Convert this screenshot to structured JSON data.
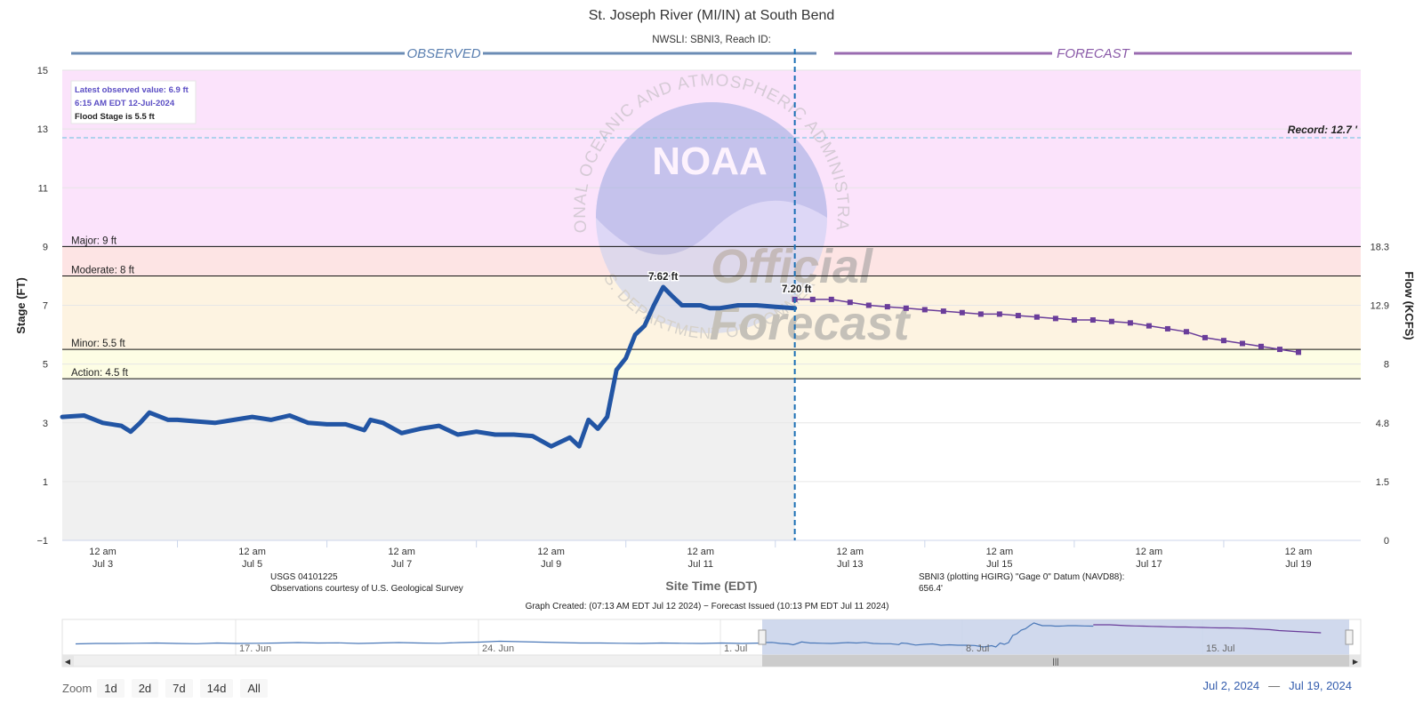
{
  "chart_data": {
    "type": "line",
    "title": "St. Joseph River (MI/IN) at South Bend",
    "subtitle": "NWSLI: SBNI3, Reach ID:",
    "xlabel": "Site Time (EDT)",
    "ylabel": "Stage (FT)",
    "y2label": "Flow (KCFS)",
    "ylim": [
      -1,
      15
    ],
    "yticks": [
      "15",
      "13",
      "11",
      "9",
      "7",
      "5",
      "3",
      "1",
      "−1"
    ],
    "y2ticks": [
      {
        "stage": 9,
        "label": "18.3"
      },
      {
        "stage": 7,
        "label": "12.9"
      },
      {
        "stage": 5,
        "label": "8"
      },
      {
        "stage": 3,
        "label": "4.8"
      },
      {
        "stage": 1,
        "label": "1.5"
      },
      {
        "stage": -1,
        "label": "0"
      }
    ],
    "xlim": [
      "2024-07-02T11:00",
      "2024-07-19T20:00"
    ],
    "xticks": [
      {
        "t": "2024-07-03T00:00",
        "l1": "12 am",
        "l2": "Jul 3"
      },
      {
        "t": "2024-07-05T00:00",
        "l1": "12 am",
        "l2": "Jul 5"
      },
      {
        "t": "2024-07-07T00:00",
        "l1": "12 am",
        "l2": "Jul 7"
      },
      {
        "t": "2024-07-09T00:00",
        "l1": "12 am",
        "l2": "Jul 9"
      },
      {
        "t": "2024-07-11T00:00",
        "l1": "12 am",
        "l2": "Jul 11"
      },
      {
        "t": "2024-07-13T00:00",
        "l1": "12 am",
        "l2": "Jul 13"
      },
      {
        "t": "2024-07-15T00:00",
        "l1": "12 am",
        "l2": "Jul 15"
      },
      {
        "t": "2024-07-17T00:00",
        "l1": "12 am",
        "l2": "Jul 17"
      },
      {
        "t": "2024-07-19T00:00",
        "l1": "12 am",
        "l2": "Jul 19"
      }
    ],
    "grid": true,
    "series": [
      {
        "name": "OBSERVED",
        "color": "#2255a4",
        "x": [
          "2024-07-02T11:00",
          "2024-07-02T18:00",
          "2024-07-03T00:00",
          "2024-07-03T06:00",
          "2024-07-03T09:00",
          "2024-07-03T12:00",
          "2024-07-03T15:00",
          "2024-07-03T21:00",
          "2024-07-04T00:00",
          "2024-07-04T06:00",
          "2024-07-04T12:00",
          "2024-07-05T00:00",
          "2024-07-05T06:00",
          "2024-07-05T12:00",
          "2024-07-05T18:00",
          "2024-07-06T00:00",
          "2024-07-06T06:00",
          "2024-07-06T12:00",
          "2024-07-06T14:00",
          "2024-07-06T18:00",
          "2024-07-07T00:00",
          "2024-07-07T06:00",
          "2024-07-07T12:00",
          "2024-07-07T18:00",
          "2024-07-08T00:00",
          "2024-07-08T06:00",
          "2024-07-08T12:00",
          "2024-07-08T18:00",
          "2024-07-09T00:00",
          "2024-07-09T06:00",
          "2024-07-09T09:00",
          "2024-07-09T12:00",
          "2024-07-09T15:00",
          "2024-07-09T18:00",
          "2024-07-09T21:00",
          "2024-07-10T00:00",
          "2024-07-10T03:00",
          "2024-07-10T06:00",
          "2024-07-10T09:00",
          "2024-07-10T12:00",
          "2024-07-10T15:00",
          "2024-07-10T18:00",
          "2024-07-10T21:00",
          "2024-07-11T00:00",
          "2024-07-11T03:00",
          "2024-07-11T06:00",
          "2024-07-11T09:00",
          "2024-07-11T12:00",
          "2024-07-11T18:00",
          "2024-07-12T00:00",
          "2024-07-12T06:15"
        ],
        "y": [
          3.2,
          3.25,
          3.0,
          2.9,
          2.7,
          3.0,
          3.35,
          3.1,
          3.1,
          3.05,
          3.0,
          3.2,
          3.1,
          3.25,
          3.0,
          2.95,
          2.95,
          2.75,
          3.1,
          3.0,
          2.65,
          2.8,
          2.9,
          2.6,
          2.7,
          2.6,
          2.6,
          2.55,
          2.2,
          2.5,
          2.2,
          3.1,
          2.8,
          3.2,
          4.8,
          5.2,
          6.0,
          6.3,
          7.0,
          7.62,
          7.3,
          7.0,
          7.0,
          7.0,
          6.9,
          6.9,
          6.95,
          7.0,
          7.0,
          6.95,
          6.9
        ]
      },
      {
        "name": "FORECAST",
        "color": "#6a3d9a",
        "x": [
          "2024-07-12T06:15",
          "2024-07-12T12:00",
          "2024-07-12T18:00",
          "2024-07-13T00:00",
          "2024-07-13T06:00",
          "2024-07-13T12:00",
          "2024-07-13T18:00",
          "2024-07-14T00:00",
          "2024-07-14T06:00",
          "2024-07-14T12:00",
          "2024-07-14T18:00",
          "2024-07-15T00:00",
          "2024-07-15T06:00",
          "2024-07-15T12:00",
          "2024-07-15T18:00",
          "2024-07-16T00:00",
          "2024-07-16T06:00",
          "2024-07-16T12:00",
          "2024-07-16T18:00",
          "2024-07-17T00:00",
          "2024-07-17T06:00",
          "2024-07-17T12:00",
          "2024-07-17T18:00",
          "2024-07-18T00:00",
          "2024-07-18T06:00",
          "2024-07-18T12:00",
          "2024-07-18T18:00",
          "2024-07-19T00:00"
        ],
        "y": [
          7.2,
          7.2,
          7.2,
          7.1,
          7.0,
          6.95,
          6.9,
          6.85,
          6.8,
          6.75,
          6.7,
          6.7,
          6.65,
          6.6,
          6.55,
          6.5,
          6.5,
          6.45,
          6.4,
          6.3,
          6.2,
          6.1,
          5.9,
          5.8,
          5.7,
          5.6,
          5.5,
          5.4
        ]
      }
    ],
    "annotations": {
      "peak_label": "7.62 ft",
      "forecast_label": "7.20 ft",
      "record_label": "Record: 12.7 '",
      "record_stage": 12.7
    },
    "flood_levels": [
      {
        "name": "major",
        "label": "Major: 9 ft",
        "stage": 9,
        "top": 15,
        "band_color": "#fbe3fb"
      },
      {
        "name": "moderate",
        "label": "Moderate: 8 ft",
        "stage": 8,
        "top": 9,
        "band_color": "#fde4e4"
      },
      {
        "name": "minor",
        "label": "Minor: 5.5 ft",
        "stage": 5.5,
        "top": 8,
        "band_color": "#fdf3e1"
      },
      {
        "name": "action",
        "label": "Action: 4.5 ft",
        "stage": 4.5,
        "top": 5.5,
        "band_color": "#fdfde4"
      }
    ],
    "now_marker": "2024-07-12T06:15",
    "section_labels": {
      "observed": "OBSERVED",
      "forecast": "FORECAST"
    }
  },
  "info_box": {
    "line1": "Latest observed value: 6.9 ft",
    "line2": "6:15 AM EDT 12-Jul-2024",
    "line3": "Flood Stage is 5.5 ft"
  },
  "watermark": {
    "logo_text": "NOAA",
    "ring_text": "NATIONAL OCEANIC AND ATMOSPHERIC ADMINISTRATION",
    "bottom_text": "U.S. DEPARTMENT OF COMMERCE",
    "line1": "Official",
    "line2": "Forecast"
  },
  "footer": {
    "usgs_line1": "USGS 04101225",
    "usgs_line2": "Observations courtesy of U.S. Geological Survey",
    "datum_line1": "SBNI3 (plotting HGIRG) \"Gage 0\" Datum (NAVD88):",
    "datum_line2": "656.4'",
    "created": "Graph Created: (07:13 AM EDT Jul 12 2024) − Forecast Issued (10:13 PM EDT Jul 11 2024)"
  },
  "navigator": {
    "labels": [
      "17. Jun",
      "24. Jun",
      "1. Jul",
      "8. Jul",
      "15. Jul"
    ],
    "history": [
      2.9,
      3.0,
      3.0,
      3.05,
      3.1,
      3.0,
      2.95,
      3.1,
      3.0,
      3.05,
      3.1,
      3.2,
      3.1,
      3.15,
      3.0,
      3.1,
      3.2,
      3.1,
      3.05,
      3.2,
      3.3,
      3.5,
      3.4,
      3.3,
      3.2,
      3.1,
      3.1,
      3.05,
      3.0,
      3.1,
      3.05,
      3.0,
      3.1,
      3.0,
      3.1
    ]
  },
  "toolbar": {
    "zoom_label": "Zoom",
    "buttons": [
      "1d",
      "2d",
      "7d",
      "14d",
      "All"
    ],
    "range_from": "Jul 2, 2024",
    "range_sep": "—",
    "range_to": "Jul 19, 2024"
  },
  "colors": {
    "observed": "#2255a4",
    "forecast": "#6a3d9a",
    "observed_bg": "#f0f0f0",
    "accent": "#335cad"
  }
}
